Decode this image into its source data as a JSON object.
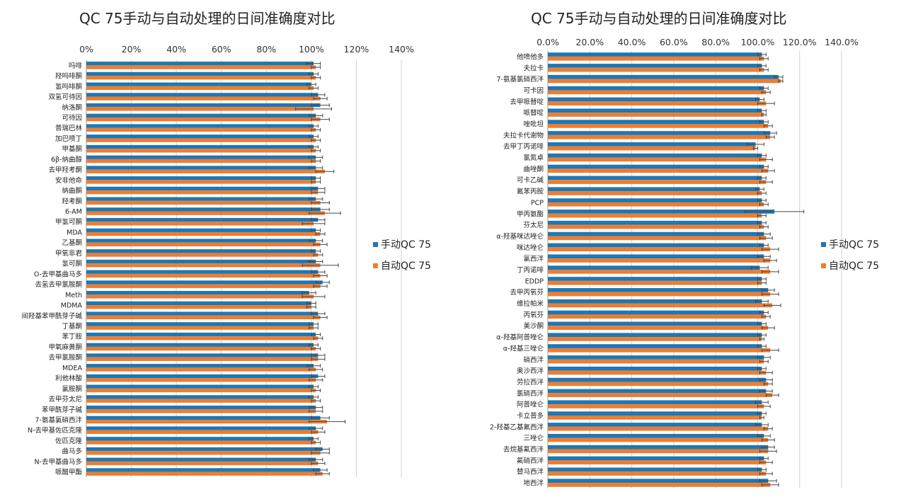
{
  "colors": {
    "manual": "#1f77b4",
    "auto": "#ed7d31",
    "grid": "#d0d0d0",
    "error_bar": "#444444"
  },
  "chart_data": [
    {
      "type": "bar",
      "orientation": "horizontal",
      "title": "QC 75手动与自动处理的日间准确度对比",
      "xlim": [
        0,
        140
      ],
      "x_ticks": [
        "0%",
        "20%",
        "40%",
        "60%",
        "80%",
        "100%",
        "120%",
        "140%"
      ],
      "grid": true,
      "legend_position": "right",
      "categories": [
        "吗啡",
        "羟吗啡酮",
        "氢吗啡酮",
        "双氢可待因",
        "纳洛酮",
        "可待因",
        "普瑞巴林",
        "加巴喷丁",
        "甲基酮",
        "6β-纳曲醇",
        "去甲羟考酮",
        "安非他命",
        "纳曲酮",
        "羟考酮",
        "6-AM",
        "甲氢可酮",
        "MDA",
        "乙基酮",
        "甲氧非君",
        "氢可酮",
        "O-去甲基曲马多",
        "去氢去甲氯胺酮",
        "Meth",
        "MDMA",
        "间羟基苯甲酰芽子碱",
        "丁基酮",
        "苯丁胺",
        "甲氧麻黄酮",
        "去甲氯胺酮",
        "MDEA",
        "利他林酸",
        "氯胺酮",
        "去甲芬太尼",
        "苯甲酰芽子碱",
        "7-氨基氯硝西泮",
        "N-去甲基佐匹克隆",
        "佐匹克隆",
        "曲马多",
        "N-去甲基曲马多",
        "哌醋甲酯"
      ],
      "series": [
        {
          "name": "手动QC 75",
          "values": [
            101,
            101,
            100,
            103,
            104,
            102,
            101,
            101,
            101,
            102,
            102,
            102,
            103,
            102,
            104,
            103,
            102,
            102,
            102,
            102,
            103,
            105,
            99,
            100,
            103,
            101,
            102,
            101,
            103,
            101,
            103,
            101,
            101,
            102,
            104,
            102,
            101,
            105,
            102,
            104
          ],
          "errors": [
            3,
            2,
            2,
            3,
            4,
            3,
            2,
            2,
            2,
            3,
            3,
            2,
            3,
            3,
            4,
            3,
            2,
            3,
            2,
            3,
            3,
            3,
            3,
            2,
            3,
            2,
            2,
            2,
            3,
            3,
            3,
            2,
            2,
            3,
            4,
            3,
            2,
            3,
            3,
            3
          ]
        },
        {
          "name": "自动QC 75",
          "values": [
            102,
            102,
            101,
            104,
            101,
            104,
            102,
            102,
            102,
            102,
            106,
            102,
            103,
            104,
            106,
            101,
            104,
            104,
            103,
            104,
            104,
            104,
            101,
            100,
            104,
            101,
            103,
            102,
            103,
            102,
            102,
            102,
            102,
            102,
            107,
            103,
            102,
            104,
            103,
            105
          ],
          "errors": [
            2,
            2,
            2,
            3,
            8,
            4,
            2,
            2,
            2,
            2,
            4,
            2,
            3,
            4,
            7,
            5,
            2,
            3,
            2,
            8,
            3,
            3,
            5,
            2,
            3,
            2,
            2,
            2,
            3,
            3,
            3,
            2,
            2,
            3,
            8,
            3,
            2,
            4,
            3,
            3
          ]
        }
      ]
    },
    {
      "type": "bar",
      "orientation": "horizontal",
      "title": "QC 75手动与自动处理的日间准确度对比",
      "xlim": [
        0,
        140
      ],
      "x_ticks": [
        "0.0%",
        "20.0%",
        "40.0%",
        "60.0%",
        "80.0%",
        "100.0%",
        "120.0%",
        "140.0%"
      ],
      "grid": true,
      "legend_position": "right",
      "categories": [
        "他喷他多",
        "夫拉卡",
        "7-氨基氯硝西泮",
        "可卡因",
        "去甲哌替啶",
        "哌替啶",
        "唑吡坦",
        "夫拉卡代谢物",
        "去甲丁丙诺啡",
        "氯氮卓",
        "曲唑酮",
        "可卡乙碱",
        "氟苯丙胺",
        "PCP",
        "甲丙氨酯",
        "芬太尼",
        "α-羟基咪达唑仑",
        "咪达唑仑",
        "氯西泮",
        "丁丙诺啡",
        "EDDP",
        "去甲丙氧芬",
        "维拉帕米",
        "丙氧芬",
        "美沙酮",
        "α-羟基阿普唑仑",
        "α-羟基三唑仑",
        "硝西泮",
        "奥沙西泮",
        "劳拉西泮",
        "氯硝西泮",
        "阿普唑仑",
        "卡立普多",
        "2-羟基乙基氟西泮",
        "三唑仑",
        "去烷基氟西泮",
        "氟硝西泮",
        "替马西泮",
        "地西泮"
      ],
      "series": [
        {
          "name": "手动QC 75",
          "values": [
            102,
            102,
            110,
            103,
            101,
            102,
            103,
            106,
            99,
            102,
            103,
            102,
            101,
            102,
            108,
            102,
            103,
            103,
            103,
            101,
            102,
            105,
            102,
            103,
            102,
            102,
            102,
            103,
            102,
            104,
            104,
            102,
            102,
            102,
            103,
            105,
            103,
            102,
            105
          ],
          "errors": [
            2,
            2,
            2,
            2,
            2,
            2,
            2,
            3,
            4,
            2,
            2,
            2,
            2,
            2,
            14,
            2,
            3,
            2,
            3,
            4,
            2,
            3,
            3,
            2,
            2,
            2,
            2,
            3,
            2,
            3,
            3,
            3,
            2,
            3,
            3,
            3,
            2,
            2,
            4
          ]
        },
        {
          "name": "自动QC 75",
          "values": [
            103,
            103,
            111,
            104,
            104,
            103,
            105,
            106,
            99,
            104,
            105,
            104,
            102,
            103,
            102,
            103,
            104,
            106,
            106,
            106,
            102,
            106,
            107,
            104,
            105,
            102,
            106,
            103,
            104,
            105,
            107,
            103,
            102,
            105,
            105,
            105,
            104,
            104,
            106
          ],
          "errors": [
            2,
            2,
            1,
            2,
            4,
            1,
            2,
            2,
            1,
            3,
            3,
            3,
            2,
            2,
            2,
            2,
            3,
            4,
            3,
            4,
            2,
            4,
            4,
            2,
            3,
            1,
            4,
            2,
            3,
            2,
            3,
            3,
            1,
            2,
            3,
            4,
            3,
            3,
            4
          ]
        }
      ]
    }
  ]
}
